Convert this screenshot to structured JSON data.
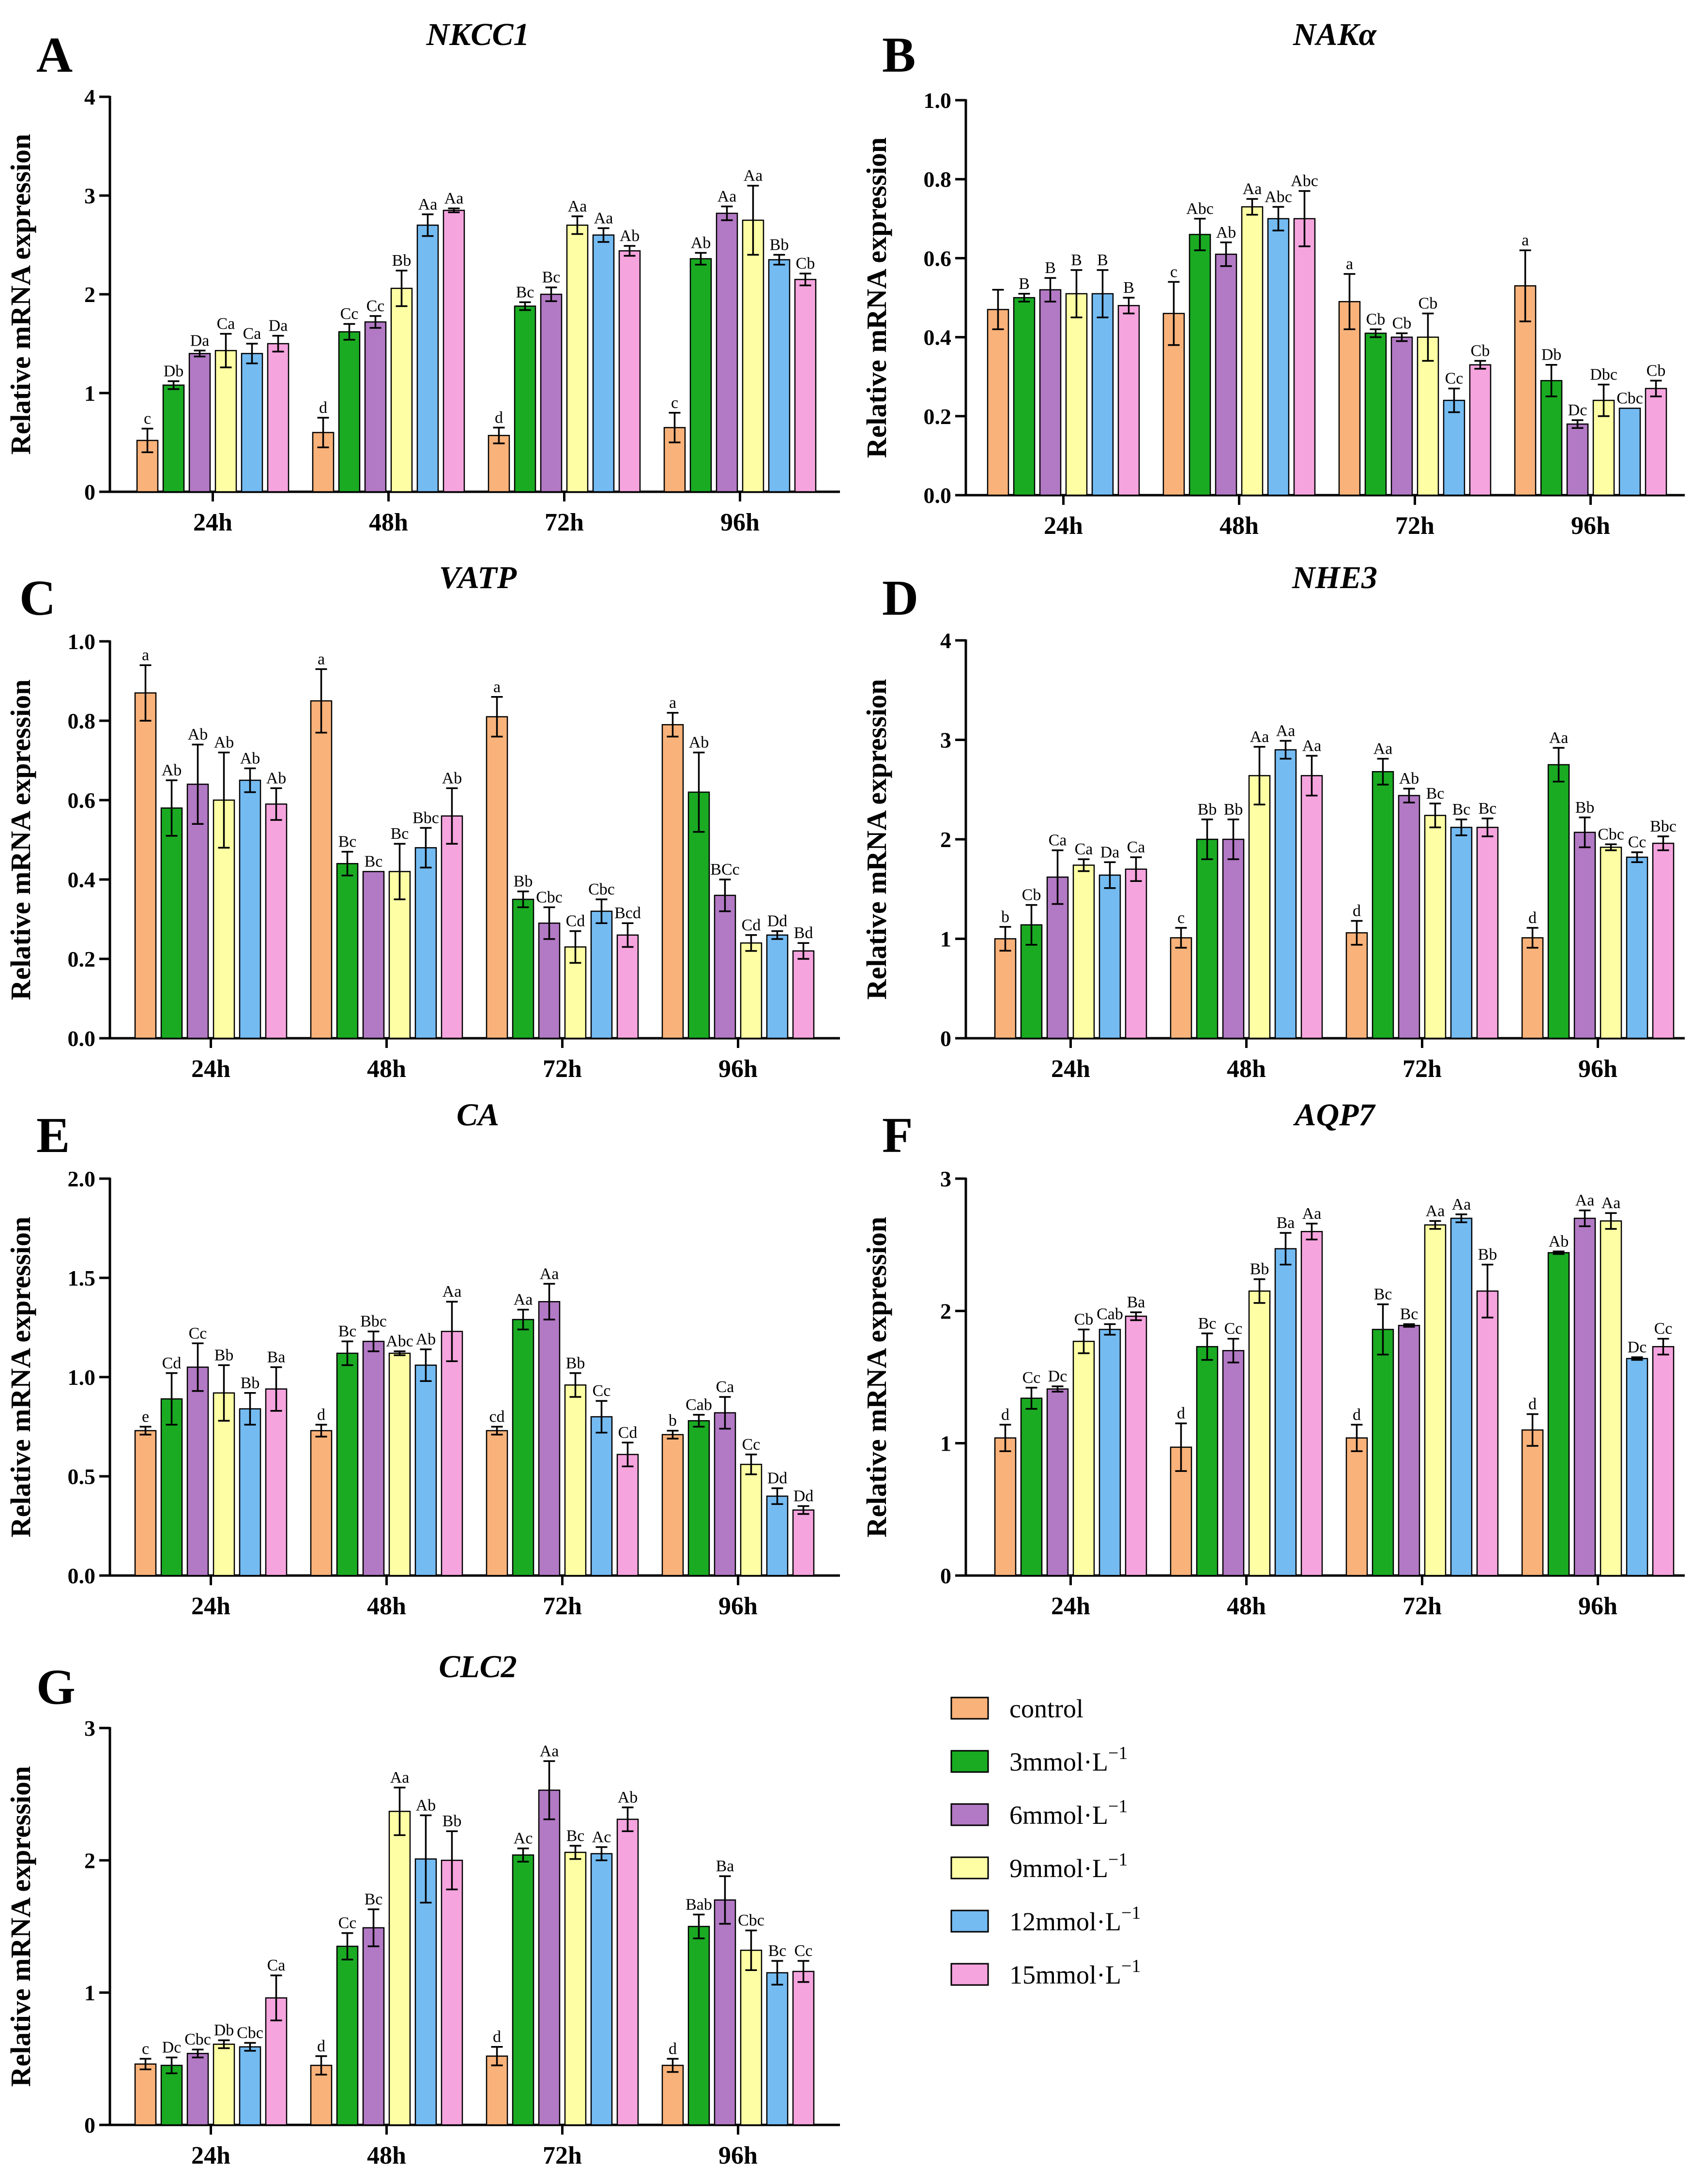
{
  "series_names": [
    "control",
    "3mmol·L",
    "6mmol·L",
    "9mmol·L",
    "12mmol·L",
    "15mmol·L"
  ],
  "series_colors": [
    "#F9B27A",
    "#1AAB23",
    "#B279C4",
    "#FEFFA5",
    "#74BBF2",
    "#F5A4DE"
  ],
  "legend": {
    "items": [
      {
        "label": "control",
        "sup": ""
      },
      {
        "label": "3mmol·L",
        "sup": "−1"
      },
      {
        "label": "6mmol·L",
        "sup": "−1"
      },
      {
        "label": "9mmol·L",
        "sup": "−1"
      },
      {
        "label": "12mmol·L",
        "sup": "−1"
      },
      {
        "label": "15mmol·L",
        "sup": "−1"
      }
    ]
  },
  "chart_data": [
    {
      "panel": "A",
      "title": "NKCC1",
      "type": "bar",
      "ylabel": "Relative mRNA expression",
      "ylim": [
        0,
        4
      ],
      "yticks": [
        0,
        1,
        2,
        3,
        4
      ],
      "ytick_labels": [
        "0",
        "1",
        "2",
        "3",
        "4"
      ],
      "categories": [
        "24h",
        "48h",
        "72h",
        "96h"
      ],
      "series": [
        {
          "name": "control",
          "values": [
            0.52,
            0.6,
            0.57,
            0.65
          ],
          "errors": [
            0.12,
            0.15,
            0.08,
            0.15
          ],
          "labels": [
            "c",
            "d",
            "d",
            "c"
          ]
        },
        {
          "name": "3mmol·L",
          "values": [
            1.08,
            1.62,
            1.88,
            2.36
          ],
          "errors": [
            0.04,
            0.08,
            0.04,
            0.06
          ],
          "labels": [
            "Db",
            "Cc",
            "Bc",
            "Ab"
          ]
        },
        {
          "name": "6mmol·L",
          "values": [
            1.4,
            1.72,
            2.0,
            2.82
          ],
          "errors": [
            0.03,
            0.06,
            0.07,
            0.07
          ],
          "labels": [
            "Da",
            "Cc",
            "Bc",
            "Aa"
          ]
        },
        {
          "name": "9mmol·L",
          "values": [
            1.43,
            2.06,
            2.7,
            2.75
          ],
          "errors": [
            0.17,
            0.18,
            0.09,
            0.35
          ],
          "labels": [
            "Ca",
            "Bb",
            "Aa",
            "Aa"
          ]
        },
        {
          "name": "12mmol·L",
          "values": [
            1.4,
            2.7,
            2.6,
            2.35
          ],
          "errors": [
            0.1,
            0.11,
            0.07,
            0.05
          ],
          "labels": [
            "Ca",
            "Aa",
            "Aa",
            "Bb"
          ]
        },
        {
          "name": "15mmol·L",
          "values": [
            1.5,
            2.85,
            2.44,
            2.15
          ],
          "errors": [
            0.08,
            0.02,
            0.05,
            0.06
          ],
          "labels": [
            "Da",
            "Aa",
            "Ab",
            "Cb"
          ]
        }
      ]
    },
    {
      "panel": "B",
      "title": "NAKα",
      "type": "bar",
      "ylabel": "Relative mRNA expression",
      "ylim": [
        0,
        1
      ],
      "yticks": [
        0,
        0.2,
        0.4,
        0.6,
        0.8,
        1.0
      ],
      "ytick_labels": [
        "0.0",
        "0.2",
        "0.4",
        "0.6",
        "0.8",
        "1.0"
      ],
      "categories": [
        "24h",
        "48h",
        "72h",
        "96h"
      ],
      "series": [
        {
          "name": "control",
          "values": [
            0.47,
            0.46,
            0.49,
            0.53
          ],
          "errors": [
            0.05,
            0.08,
            0.07,
            0.09
          ],
          "labels": [
            "",
            "c",
            "a",
            "a"
          ]
        },
        {
          "name": "3mmol·L",
          "values": [
            0.5,
            0.66,
            0.41,
            0.29
          ],
          "errors": [
            0.01,
            0.04,
            0.01,
            0.04
          ],
          "labels": [
            "B",
            "Abc",
            "Cb",
            "Db"
          ]
        },
        {
          "name": "6mmol·L",
          "values": [
            0.52,
            0.61,
            0.4,
            0.18
          ],
          "errors": [
            0.03,
            0.03,
            0.01,
            0.01
          ],
          "labels": [
            "B",
            "Ab",
            "Cb",
            "Dc"
          ]
        },
        {
          "name": "9mmol·L",
          "values": [
            0.51,
            0.73,
            0.4,
            0.24
          ],
          "errors": [
            0.06,
            0.02,
            0.06,
            0.04
          ],
          "labels": [
            "B",
            "Aa",
            "Cb",
            "Dbc"
          ]
        },
        {
          "name": "12mmol·L",
          "values": [
            0.51,
            0.7,
            0.24,
            0.22
          ],
          "errors": [
            0.06,
            0.03,
            0.03,
            0.0
          ],
          "labels": [
            "B",
            "Abc",
            "Cc",
            "Cbc"
          ]
        },
        {
          "name": "15mmol·L",
          "values": [
            0.48,
            0.7,
            0.33,
            0.27
          ],
          "errors": [
            0.02,
            0.07,
            0.01,
            0.02
          ],
          "labels": [
            "B",
            "Abc",
            "Cb",
            "Cb"
          ]
        }
      ]
    },
    {
      "panel": "C",
      "title": "VATP",
      "type": "bar",
      "ylabel": "Relative mRNA expression",
      "ylim": [
        0,
        1
      ],
      "yticks": [
        0,
        0.2,
        0.4,
        0.6,
        0.8,
        1.0
      ],
      "ytick_labels": [
        "0.0",
        "0.2",
        "0.4",
        "0.6",
        "0.8",
        "1.0"
      ],
      "categories": [
        "24h",
        "48h",
        "72h",
        "96h"
      ],
      "series": [
        {
          "name": "control",
          "values": [
            0.87,
            0.85,
            0.81,
            0.79
          ],
          "errors": [
            0.07,
            0.08,
            0.05,
            0.03
          ],
          "labels": [
            "a",
            "a",
            "a",
            "a"
          ]
        },
        {
          "name": "3mmol·L",
          "values": [
            0.58,
            0.44,
            0.35,
            0.62
          ],
          "errors": [
            0.07,
            0.03,
            0.02,
            0.1
          ],
          "labels": [
            "Ab",
            "Bc",
            "Bb",
            "Ab"
          ]
        },
        {
          "name": "6mmol·L",
          "values": [
            0.64,
            0.42,
            0.29,
            0.36
          ],
          "errors": [
            0.1,
            0.0,
            0.04,
            0.04
          ],
          "labels": [
            "Ab",
            "Bc",
            "Cbc",
            "BCc"
          ]
        },
        {
          "name": "9mmol·L",
          "values": [
            0.6,
            0.42,
            0.23,
            0.24
          ],
          "errors": [
            0.12,
            0.07,
            0.04,
            0.02
          ],
          "labels": [
            "Ab",
            "Bc",
            "Cd",
            "Cd"
          ]
        },
        {
          "name": "12mmol·L",
          "values": [
            0.65,
            0.48,
            0.32,
            0.26
          ],
          "errors": [
            0.03,
            0.05,
            0.03,
            0.01
          ],
          "labels": [
            "Ab",
            "Bbc",
            "Cbc",
            "Dd"
          ]
        },
        {
          "name": "15mmol·L",
          "values": [
            0.59,
            0.56,
            0.26,
            0.22
          ],
          "errors": [
            0.04,
            0.07,
            0.03,
            0.02
          ],
          "labels": [
            "Ab",
            "Ab",
            "Bcd",
            "Bd"
          ]
        }
      ]
    },
    {
      "panel": "D",
      "title": "NHE3",
      "type": "bar",
      "ylabel": "Relative mRNA expression",
      "ylim": [
        0,
        4
      ],
      "yticks": [
        0,
        1,
        2,
        3,
        4
      ],
      "ytick_labels": [
        "0",
        "1",
        "2",
        "3",
        "4"
      ],
      "categories": [
        "24h",
        "48h",
        "72h",
        "96h"
      ],
      "series": [
        {
          "name": "control",
          "values": [
            1.0,
            1.01,
            1.06,
            1.01
          ],
          "errors": [
            0.12,
            0.1,
            0.12,
            0.1
          ],
          "labels": [
            "b",
            "c",
            "d",
            "d"
          ]
        },
        {
          "name": "3mmol·L",
          "values": [
            1.14,
            2.0,
            2.68,
            2.75
          ],
          "errors": [
            0.2,
            0.2,
            0.13,
            0.17
          ],
          "labels": [
            "Cb",
            "Bb",
            "Aa",
            "Aa"
          ]
        },
        {
          "name": "6mmol·L",
          "values": [
            1.62,
            2.0,
            2.44,
            2.07
          ],
          "errors": [
            0.27,
            0.2,
            0.07,
            0.15
          ],
          "labels": [
            "Ca",
            "Bb",
            "Ab",
            "Bb"
          ]
        },
        {
          "name": "9mmol·L",
          "values": [
            1.74,
            2.64,
            2.24,
            1.92
          ],
          "errors": [
            0.06,
            0.29,
            0.12,
            0.03
          ],
          "labels": [
            "Ca",
            "Aa",
            "Bc",
            "Cbc"
          ]
        },
        {
          "name": "12mmol·L",
          "values": [
            1.64,
            2.9,
            2.12,
            1.82
          ],
          "errors": [
            0.13,
            0.09,
            0.08,
            0.05
          ],
          "labels": [
            "Da",
            "Aa",
            "Bc",
            "Cc"
          ]
        },
        {
          "name": "15mmol·L",
          "values": [
            1.7,
            2.64,
            2.12,
            1.96
          ],
          "errors": [
            0.12,
            0.2,
            0.09,
            0.07
          ],
          "labels": [
            "Ca",
            "Aa",
            "Bc",
            "Bbc"
          ]
        }
      ]
    },
    {
      "panel": "E",
      "title": "CA",
      "type": "bar",
      "ylabel": "Relative mRNA expression",
      "ylim": [
        0,
        2
      ],
      "yticks": [
        0,
        0.5,
        1.0,
        1.5,
        2.0
      ],
      "ytick_labels": [
        "0.0",
        "0.5",
        "1.0",
        "1.5",
        "2.0"
      ],
      "categories": [
        "24h",
        "48h",
        "72h",
        "96h"
      ],
      "series": [
        {
          "name": "control",
          "values": [
            0.73,
            0.73,
            0.73,
            0.71
          ],
          "errors": [
            0.02,
            0.03,
            0.02,
            0.02
          ],
          "labels": [
            "e",
            "d",
            "cd",
            "b"
          ]
        },
        {
          "name": "3mmol·L",
          "values": [
            0.89,
            1.12,
            1.29,
            0.78
          ],
          "errors": [
            0.13,
            0.06,
            0.05,
            0.03
          ],
          "labels": [
            "Cd",
            "Bc",
            "Aa",
            "Cab"
          ]
        },
        {
          "name": "6mmol·L",
          "values": [
            1.05,
            1.18,
            1.38,
            0.82
          ],
          "errors": [
            0.12,
            0.05,
            0.09,
            0.08
          ],
          "labels": [
            "Cc",
            "Bbc",
            "Aa",
            "Ca"
          ]
        },
        {
          "name": "9mmol·L",
          "values": [
            0.92,
            1.12,
            0.96,
            0.56
          ],
          "errors": [
            0.14,
            0.01,
            0.06,
            0.05
          ],
          "labels": [
            "Bb",
            "Abc",
            "Bb",
            "Cc"
          ]
        },
        {
          "name": "12mmol·L",
          "values": [
            0.84,
            1.06,
            0.8,
            0.4
          ],
          "errors": [
            0.08,
            0.08,
            0.08,
            0.04
          ],
          "labels": [
            "Bb",
            "Ab",
            "Cc",
            "Dd"
          ]
        },
        {
          "name": "15mmol·L",
          "values": [
            0.94,
            1.23,
            0.61,
            0.33
          ],
          "errors": [
            0.11,
            0.15,
            0.06,
            0.02
          ],
          "labels": [
            "Ba",
            "Aa",
            "Cd",
            "Dd"
          ]
        }
      ]
    },
    {
      "panel": "F",
      "title": "AQP7",
      "type": "bar",
      "ylabel": "Relative mRNA expression",
      "ylim": [
        0,
        3
      ],
      "yticks": [
        0,
        1,
        2,
        3
      ],
      "ytick_labels": [
        "0",
        "1",
        "2",
        "3"
      ],
      "categories": [
        "24h",
        "48h",
        "72h",
        "96h"
      ],
      "series": [
        {
          "name": "control",
          "values": [
            1.04,
            0.97,
            1.04,
            1.1
          ],
          "errors": [
            0.1,
            0.18,
            0.1,
            0.12
          ],
          "labels": [
            "d",
            "d",
            "d",
            "d"
          ]
        },
        {
          "name": "3mmol·L",
          "values": [
            1.34,
            1.73,
            1.86,
            2.44
          ],
          "errors": [
            0.08,
            0.1,
            0.19,
            0.01
          ],
          "labels": [
            "Cc",
            "Bc",
            "Bc",
            "Ab"
          ]
        },
        {
          "name": "6mmol·L",
          "values": [
            1.41,
            1.7,
            1.89,
            2.7
          ],
          "errors": [
            0.02,
            0.09,
            0.01,
            0.06
          ],
          "labels": [
            "Dc",
            "Cc",
            "Bc",
            "Aa"
          ]
        },
        {
          "name": "9mmol·L",
          "values": [
            1.77,
            2.15,
            2.65,
            2.68
          ],
          "errors": [
            0.09,
            0.09,
            0.03,
            0.06
          ],
          "labels": [
            "Cb",
            "Bb",
            "Aa",
            "Aa"
          ]
        },
        {
          "name": "12mmol·L",
          "values": [
            1.86,
            2.47,
            2.7,
            1.64
          ],
          "errors": [
            0.04,
            0.12,
            0.03,
            0.01
          ],
          "labels": [
            "Cab",
            "Ba",
            "Aa",
            "Dc"
          ]
        },
        {
          "name": "15mmol·L",
          "values": [
            1.96,
            2.6,
            2.15,
            1.73
          ],
          "errors": [
            0.03,
            0.06,
            0.2,
            0.06
          ],
          "labels": [
            "Ba",
            "Aa",
            "Bb",
            "Cc"
          ]
        }
      ]
    },
    {
      "panel": "G",
      "title": "CLC2",
      "type": "bar",
      "ylabel": "Relative mRNA expression",
      "ylim": [
        0,
        3
      ],
      "yticks": [
        0,
        1,
        2,
        3
      ],
      "ytick_labels": [
        "0",
        "1",
        "2",
        "3"
      ],
      "categories": [
        "24h",
        "48h",
        "72h",
        "96h"
      ],
      "series": [
        {
          "name": "control",
          "values": [
            0.46,
            0.45,
            0.52,
            0.45
          ],
          "errors": [
            0.04,
            0.07,
            0.07,
            0.05
          ],
          "labels": [
            "c",
            "d",
            "d",
            "d"
          ]
        },
        {
          "name": "3mmol·L",
          "values": [
            0.45,
            1.35,
            2.04,
            1.5
          ],
          "errors": [
            0.06,
            0.1,
            0.05,
            0.09
          ],
          "labels": [
            "Dc",
            "Cc",
            "Ac",
            "Bab"
          ]
        },
        {
          "name": "6mmol·L",
          "values": [
            0.54,
            1.49,
            2.53,
            1.7
          ],
          "errors": [
            0.03,
            0.14,
            0.22,
            0.18
          ],
          "labels": [
            "Cbc",
            "Bc",
            "Aa",
            "Ba"
          ]
        },
        {
          "name": "9mmol·L",
          "values": [
            0.61,
            2.37,
            2.06,
            1.32
          ],
          "errors": [
            0.03,
            0.18,
            0.05,
            0.15
          ],
          "labels": [
            "Db",
            "Aa",
            "Bc",
            "Cbc"
          ]
        },
        {
          "name": "12mmol·L",
          "values": [
            0.59,
            2.01,
            2.05,
            1.15
          ],
          "errors": [
            0.03,
            0.33,
            0.05,
            0.09
          ],
          "labels": [
            "Cbc",
            "Ab",
            "Ac",
            "Bc"
          ]
        },
        {
          "name": "15mmol·L",
          "values": [
            0.96,
            2.0,
            2.31,
            1.16
          ],
          "errors": [
            0.17,
            0.22,
            0.09,
            0.08
          ],
          "labels": [
            "Ca",
            "Bb",
            "Ab",
            "Cc"
          ]
        }
      ]
    }
  ]
}
